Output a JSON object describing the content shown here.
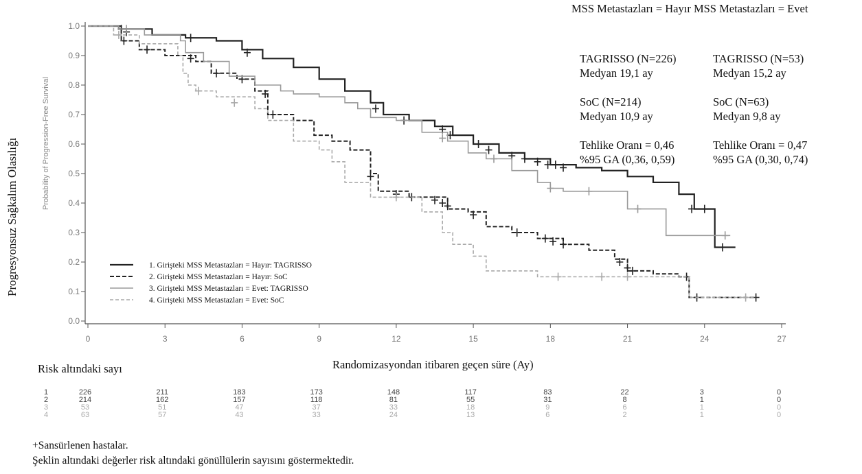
{
  "summary": {
    "header": "MSS Metastazları = Hayır MSS Metastazları = Evet",
    "col1": {
      "tagrisso_n": "TAGRISSO (N=226)",
      "tagrisso_median": "Medyan 19,1 ay",
      "soc_n": "SoC (N=214)",
      "soc_median": "Medyan 10,9 ay",
      "hr": "Tehlike Oranı = 0,46",
      "ci": "%95 GA (0,36, 0,59)"
    },
    "col2": {
      "tagrisso_n": "TAGRISSO (N=53)",
      "tagrisso_median": "Medyan 15,2 ay",
      "soc_n": "SoC (N=63)",
      "soc_median": "Medyan 9,8 ay",
      "hr": "Tehlike Oranı = 0,47",
      "ci": "%95 GA (0,30, 0,74)"
    }
  },
  "risk_title": "Risk altındaki sayı",
  "footnotes": {
    "censored": "+Sansürlenen hastalar.",
    "note": "Şeklin altındaki değerler risk altındaki gönüllülerin sayısını göstermektedir."
  },
  "chart_data": {
    "type": "line",
    "subtype": "kaplan-meier",
    "ylabel": "Progresyonsuz Sağkalım Olasılığı",
    "ylabel_inner": "Probability of Progression-Free Survival",
    "xlabel": "Randomizasyondan itibaren geçen süre (Ay)",
    "xlim": [
      0,
      27
    ],
    "ylim": [
      0,
      1
    ],
    "x_ticks": [
      "0",
      "3",
      "6",
      "9",
      "12",
      "15",
      "18",
      "21",
      "24",
      "27"
    ],
    "y_ticks": [
      "0.0",
      "0.1",
      "0.2",
      "0.3",
      "0.4",
      "0.5",
      "0.6",
      "0.7",
      "0.8",
      "0.9",
      "1.0"
    ],
    "grid": false,
    "legend_position": "bottom-left",
    "series": [
      {
        "name": "1. Girişteki MSS Metastazları = Hayır: TAGRISSO",
        "style": "solid-dark",
        "color": "#222222",
        "points": [
          [
            0,
            1.0
          ],
          [
            1.2,
            0.99
          ],
          [
            2.5,
            0.97
          ],
          [
            3.8,
            0.96
          ],
          [
            5.0,
            0.95
          ],
          [
            6.0,
            0.92
          ],
          [
            6.8,
            0.89
          ],
          [
            8.0,
            0.86
          ],
          [
            9.0,
            0.82
          ],
          [
            10.0,
            0.78
          ],
          [
            11.0,
            0.74
          ],
          [
            11.5,
            0.7
          ],
          [
            12.5,
            0.68
          ],
          [
            13.5,
            0.66
          ],
          [
            14.2,
            0.63
          ],
          [
            15.0,
            0.6
          ],
          [
            16.0,
            0.57
          ],
          [
            17.0,
            0.55
          ],
          [
            18.0,
            0.53
          ],
          [
            19.0,
            0.52
          ],
          [
            20.0,
            0.51
          ],
          [
            21.0,
            0.49
          ],
          [
            22.0,
            0.47
          ],
          [
            23.0,
            0.43
          ],
          [
            23.6,
            0.38
          ],
          [
            24.4,
            0.25
          ],
          [
            25.2,
            0.25
          ]
        ],
        "censors": [
          [
            1.3,
            0.99
          ],
          [
            1.5,
            0.98
          ],
          [
            4.0,
            0.96
          ],
          [
            6.2,
            0.91
          ],
          [
            11.2,
            0.72
          ],
          [
            12.3,
            0.68
          ],
          [
            13.8,
            0.65
          ],
          [
            14.1,
            0.63
          ],
          [
            15.2,
            0.6
          ],
          [
            15.6,
            0.58
          ],
          [
            16.5,
            0.56
          ],
          [
            17.0,
            0.55
          ],
          [
            17.5,
            0.54
          ],
          [
            17.9,
            0.53
          ],
          [
            18.2,
            0.53
          ],
          [
            18.5,
            0.52
          ],
          [
            23.5,
            0.38
          ],
          [
            24.0,
            0.38
          ],
          [
            24.7,
            0.25
          ]
        ]
      },
      {
        "name": "2. Girişteki MSS Metastazları = Hayır: SoC",
        "style": "dashed-dark",
        "color": "#222222",
        "points": [
          [
            0,
            1.0
          ],
          [
            1.3,
            0.95
          ],
          [
            2.0,
            0.92
          ],
          [
            3.0,
            0.9
          ],
          [
            4.2,
            0.88
          ],
          [
            4.8,
            0.84
          ],
          [
            5.8,
            0.82
          ],
          [
            6.5,
            0.78
          ],
          [
            7.0,
            0.7
          ],
          [
            8.0,
            0.68
          ],
          [
            8.8,
            0.63
          ],
          [
            9.5,
            0.61
          ],
          [
            10.2,
            0.58
          ],
          [
            11.0,
            0.5
          ],
          [
            11.3,
            0.44
          ],
          [
            12.5,
            0.42
          ],
          [
            13.2,
            0.42
          ],
          [
            14.0,
            0.38
          ],
          [
            14.8,
            0.37
          ],
          [
            15.5,
            0.32
          ],
          [
            16.5,
            0.3
          ],
          [
            17.5,
            0.28
          ],
          [
            18.5,
            0.26
          ],
          [
            19.5,
            0.24
          ],
          [
            20.5,
            0.21
          ],
          [
            21.0,
            0.17
          ],
          [
            22.0,
            0.16
          ],
          [
            23.0,
            0.15
          ],
          [
            23.4,
            0.08
          ],
          [
            26.0,
            0.08
          ]
        ],
        "censors": [
          [
            1.4,
            0.95
          ],
          [
            2.3,
            0.92
          ],
          [
            4.0,
            0.89
          ],
          [
            5.0,
            0.84
          ],
          [
            6.0,
            0.82
          ],
          [
            6.9,
            0.77
          ],
          [
            7.2,
            0.7
          ],
          [
            11.0,
            0.49
          ],
          [
            12.0,
            0.43
          ],
          [
            12.6,
            0.42
          ],
          [
            13.5,
            0.41
          ],
          [
            13.8,
            0.4
          ],
          [
            14.0,
            0.39
          ],
          [
            15.0,
            0.36
          ],
          [
            16.7,
            0.3
          ],
          [
            17.8,
            0.28
          ],
          [
            18.1,
            0.27
          ],
          [
            18.5,
            0.26
          ],
          [
            20.7,
            0.2
          ],
          [
            21.0,
            0.18
          ],
          [
            21.2,
            0.17
          ],
          [
            23.3,
            0.15
          ],
          [
            23.7,
            0.08
          ],
          [
            26.0,
            0.08
          ]
        ]
      },
      {
        "name": "3. Girişteki MSS Metastazları = Evet: TAGRISSO",
        "style": "solid-light",
        "color": "#9a9a9a",
        "points": [
          [
            0,
            1.0
          ],
          [
            1.2,
            0.99
          ],
          [
            2.2,
            0.97
          ],
          [
            3.6,
            0.95
          ],
          [
            3.8,
            0.91
          ],
          [
            4.5,
            0.88
          ],
          [
            5.5,
            0.83
          ],
          [
            6.5,
            0.8
          ],
          [
            7.5,
            0.78
          ],
          [
            8.0,
            0.77
          ],
          [
            9.0,
            0.76
          ],
          [
            10.0,
            0.74
          ],
          [
            10.5,
            0.72
          ],
          [
            11.0,
            0.69
          ],
          [
            12.0,
            0.68
          ],
          [
            13.0,
            0.64
          ],
          [
            14.0,
            0.61
          ],
          [
            14.8,
            0.57
          ],
          [
            15.5,
            0.55
          ],
          [
            16.5,
            0.51
          ],
          [
            17.5,
            0.47
          ],
          [
            18.0,
            0.45
          ],
          [
            18.5,
            0.44
          ],
          [
            20.5,
            0.44
          ],
          [
            21.0,
            0.38
          ],
          [
            22.0,
            0.38
          ],
          [
            22.5,
            0.29
          ],
          [
            23.5,
            0.29
          ],
          [
            25.0,
            0.29
          ]
        ],
        "censors": [
          [
            1.5,
            0.99
          ],
          [
            13.8,
            0.62
          ],
          [
            15.8,
            0.55
          ],
          [
            18.0,
            0.45
          ],
          [
            19.5,
            0.44
          ],
          [
            21.4,
            0.38
          ],
          [
            24.8,
            0.29
          ]
        ]
      },
      {
        "name": "4. Girişteki MSS Metastazları = Evet: SoC",
        "style": "dashed-light",
        "color": "#a9a9a9",
        "points": [
          [
            0,
            1.0
          ],
          [
            1.0,
            0.97
          ],
          [
            2.0,
            0.94
          ],
          [
            3.5,
            0.9
          ],
          [
            3.7,
            0.84
          ],
          [
            3.9,
            0.8
          ],
          [
            4.2,
            0.78
          ],
          [
            5.0,
            0.76
          ],
          [
            6.5,
            0.72
          ],
          [
            7.0,
            0.68
          ],
          [
            8.0,
            0.61
          ],
          [
            9.0,
            0.58
          ],
          [
            9.5,
            0.54
          ],
          [
            10.0,
            0.47
          ],
          [
            11.0,
            0.42
          ],
          [
            12.0,
            0.42
          ],
          [
            13.0,
            0.37
          ],
          [
            13.8,
            0.3
          ],
          [
            14.2,
            0.26
          ],
          [
            15.0,
            0.22
          ],
          [
            15.5,
            0.17
          ],
          [
            17.0,
            0.17
          ],
          [
            17.5,
            0.15
          ],
          [
            20.5,
            0.15
          ],
          [
            23.2,
            0.15
          ],
          [
            23.4,
            0.08
          ],
          [
            26.0,
            0.08
          ]
        ],
        "censors": [
          [
            1.2,
            0.97
          ],
          [
            4.3,
            0.78
          ],
          [
            5.7,
            0.74
          ],
          [
            12.0,
            0.42
          ],
          [
            18.3,
            0.15
          ],
          [
            20.0,
            0.15
          ],
          [
            21.0,
            0.15
          ],
          [
            25.6,
            0.08
          ]
        ]
      }
    ],
    "risk_table": {
      "times": [
        0,
        3,
        6,
        9,
        12,
        15,
        18,
        21,
        24,
        27
      ],
      "rows": [
        {
          "label": "1",
          "values": [
            "226",
            "211",
            "183",
            "173",
            "148",
            "117",
            "83",
            "22",
            "3",
            "0"
          ]
        },
        {
          "label": "2",
          "values": [
            "214",
            "162",
            "157",
            "118",
            "81",
            "55",
            "31",
            "8",
            "1",
            "0"
          ]
        },
        {
          "label": "3",
          "values": [
            "53",
            "51",
            "47",
            "37",
            "33",
            "18",
            "9",
            "6",
            "1",
            "0"
          ]
        },
        {
          "label": "4",
          "values": [
            "63",
            "57",
            "43",
            "33",
            "24",
            "13",
            "6",
            "2",
            "1",
            "0"
          ]
        }
      ]
    }
  }
}
